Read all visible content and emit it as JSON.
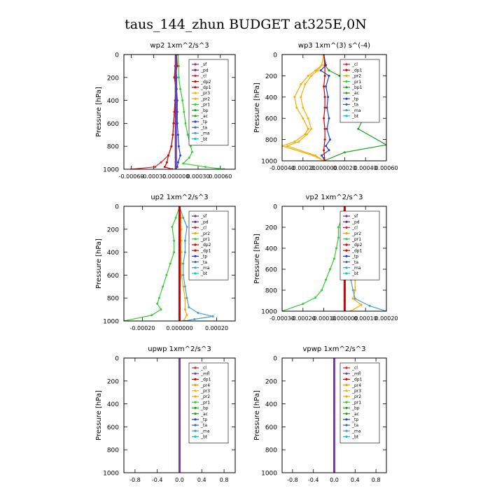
{
  "title": "taus_144_zhun  BUDGET at325E,0N",
  "colors": {
    "sf": "#6a3d9a",
    "pd": "#5b2a86",
    "mfl": "#7b3fa0",
    "cl": "#d62728",
    "dp": "#d40000",
    "pr1": "#32cd32",
    "pr2": "#ffa500",
    "pr3": "#ffb000",
    "pr4": "#e8a000",
    "bp": "#1aa31a",
    "ac": "#2ca02c",
    "tp": "#1f3fcf",
    "ta": "#4060d0",
    "ma": "#40a0d0",
    "bt": "#00ced1"
  },
  "chart_data": [
    {
      "id": "wp2",
      "type": "line",
      "title": "wp2  1xm^2/s^3",
      "ylabel": "Pressure [hPa]",
      "xlim": [
        -0.0007,
        0.0008
      ],
      "ylim": [
        1000,
        0
      ],
      "y_reversed": true,
      "xticks": [
        "-0.00060",
        "-0.00030",
        "0.000000",
        "0.00030",
        "0.00060"
      ],
      "xtick_values": [
        -0.0006,
        -0.0003,
        0,
        0.0003,
        0.0006
      ],
      "yticks": [
        "0",
        "200",
        "400",
        "600",
        "800",
        "1000"
      ],
      "ytick_values": [
        0,
        200,
        400,
        600,
        800,
        1000
      ],
      "legend": [
        "_sf",
        "_pd",
        "_cl",
        "_dp2",
        "_dp1",
        "_pr3",
        "_pr2",
        "_pr1",
        "_bp",
        "_ac",
        "_tp",
        "_ta",
        "_ma",
        "_bt"
      ],
      "legend_colors": [
        "sf",
        "pd",
        "cl",
        "dp",
        "dp",
        "pr3",
        "pr2",
        "pr1",
        "bp",
        "ac",
        "tp",
        "ta",
        "ma",
        "bt"
      ],
      "legend_placement": "top-right",
      "series": [
        {
          "c": "pr1",
          "x": [
            3e-05,
            4e-05,
            4e-05,
            6e-05,
            9e-05,
            0.00011,
            0.00013,
            0.00016,
            0.0002,
            0.00022,
            0.00018,
            0.0001,
            0.0004,
            0.00065
          ],
          "y": [
            0,
            100,
            200,
            300,
            400,
            500,
            600,
            700,
            800,
            850,
            900,
            950,
            980,
            1000
          ]
        },
        {
          "c": "cl",
          "x": [
            1e-05,
            -1e-05,
            -2e-05,
            0,
            -1e-05,
            -2e-05,
            -3e-05,
            -4e-05,
            -6e-05,
            -0.0001,
            -0.0002,
            -0.00028,
            -0.0006
          ],
          "y": [
            0,
            100,
            200,
            300,
            400,
            500,
            600,
            700,
            800,
            880,
            940,
            980,
            1000
          ]
        },
        {
          "c": "dp",
          "x": [
            1e-05,
            2e-05,
            -2e-05,
            1e-05,
            -1e-05,
            -2e-05,
            -3e-05,
            -4e-05,
            -6e-05,
            -0.0001,
            -0.00012,
            -0.00015,
            -5e-05
          ],
          "y": [
            0,
            100,
            200,
            300,
            400,
            500,
            600,
            700,
            800,
            880,
            940,
            980,
            1000
          ]
        },
        {
          "c": "tp",
          "x": [
            0,
            0,
            1e-05,
            1e-05,
            2e-05,
            2e-05,
            2e-05,
            3e-05,
            4e-05,
            6e-05,
            3e-05,
            2e-05,
            0
          ],
          "y": [
            0,
            100,
            200,
            300,
            400,
            500,
            600,
            700,
            800,
            880,
            940,
            980,
            1000
          ]
        },
        {
          "c": "sf",
          "x": [
            0,
            0,
            0,
            0,
            0,
            0,
            0,
            0,
            0,
            0,
            0
          ],
          "y": [
            0,
            100,
            200,
            300,
            400,
            500,
            600,
            700,
            800,
            900,
            1000
          ]
        }
      ]
    },
    {
      "id": "wp3",
      "type": "line",
      "title": "wp3  1xm^(3) s^(-4)",
      "ylabel": "Pressure [hPa]",
      "xlim": [
        -0.0004,
        0.0006
      ],
      "ylim": [
        1000,
        0
      ],
      "y_reversed": true,
      "xticks": [
        "-0.00040",
        "-0.00020",
        "0.000000",
        "0.00020",
        "0.00040",
        "0.00060"
      ],
      "xtick_values": [
        -0.0004,
        -0.0002,
        0,
        0.0002,
        0.0004,
        0.0006
      ],
      "yticks": [
        "0",
        "200",
        "400",
        "600",
        "800",
        "1000"
      ],
      "ytick_values": [
        0,
        200,
        400,
        600,
        800,
        1000
      ],
      "legend": [
        "_cl",
        "_dp1",
        "_pr2",
        "_pr1",
        "_bp1",
        "_ac",
        "_tp",
        "_ta",
        "_ma",
        "_bt"
      ],
      "legend_colors": [
        "cl",
        "dp",
        "pr2",
        "pr1",
        "bp",
        "ac",
        "tp",
        "ta",
        "ma",
        "bt"
      ],
      "legend_placement": "top-right",
      "series": [
        {
          "c": "bp",
          "x": [
            0,
            1e-05,
            5e-05,
            0.00015,
            0.00025,
            0.00035,
            0.00045,
            0.00048,
            0.00038,
            0.00033,
            0.0006,
            0.0002,
            0
          ],
          "y": [
            0,
            100,
            150,
            200,
            250,
            320,
            400,
            500,
            600,
            700,
            850,
            920,
            1000
          ]
        },
        {
          "c": "pr2",
          "x": [
            0,
            -2e-05,
            -8e-05,
            -0.00015,
            -0.00022,
            -0.00028,
            -0.00026,
            -0.0002,
            -0.00015,
            -0.00018,
            -0.00028,
            -0.0004,
            -0.0001,
            0
          ],
          "y": [
            0,
            100,
            150,
            200,
            280,
            400,
            500,
            600,
            700,
            750,
            820,
            860,
            950,
            1000
          ]
        },
        {
          "c": "pr3",
          "x": [
            0,
            -2e-05,
            -6e-05,
            -0.00012,
            -0.00018,
            -0.00022,
            -0.0002,
            -0.00015,
            -0.00012,
            -0.00016,
            -0.00024,
            -0.00035,
            -8e-05,
            0
          ],
          "y": [
            0,
            100,
            150,
            200,
            280,
            400,
            500,
            600,
            700,
            750,
            820,
            860,
            950,
            1000
          ]
        },
        {
          "c": "tp",
          "x": [
            0,
            2e-05,
            -3e-05,
            5e-05,
            2e-05,
            4e-05,
            3e-05,
            5e-05,
            3e-05,
            6e-05,
            2e-05,
            5e-05,
            -2e-05,
            1e-05
          ],
          "y": [
            0,
            100,
            150,
            200,
            300,
            400,
            500,
            600,
            700,
            800,
            860,
            900,
            950,
            1000
          ]
        },
        {
          "c": "dp",
          "x": [
            0,
            1e-05,
            1e-05,
            0,
            1e-05,
            1e-05,
            0,
            1e-05,
            1e-05,
            0,
            1e-05
          ],
          "y": [
            0,
            100,
            200,
            300,
            400,
            500,
            600,
            700,
            800,
            900,
            1000
          ]
        }
      ]
    },
    {
      "id": "up2",
      "type": "line",
      "title": "up2  1xm^2/s^3",
      "ylabel": "Pressure [hPa]",
      "xlim": [
        -0.0003,
        0.0003
      ],
      "ylim": [
        1000,
        0
      ],
      "y_reversed": true,
      "xticks": [
        "-0.00020",
        "0.000000",
        "0.00020"
      ],
      "xtick_values": [
        -0.0002,
        0,
        0.0002
      ],
      "yticks": [
        "0",
        "200",
        "400",
        "600",
        "800",
        "1000"
      ],
      "ytick_values": [
        0,
        200,
        400,
        600,
        800,
        1000
      ],
      "legend": [
        "_sf",
        "_pd",
        "_cl",
        "_pr2",
        "_pr1",
        "_dp2",
        "_dp1",
        "_tp",
        "_ta",
        "_ma",
        "_bt"
      ],
      "legend_colors": [
        "sf",
        "pd",
        "cl",
        "pr2",
        "pr1",
        "dp",
        "dp",
        "tp",
        "ta",
        "ma",
        "bt"
      ],
      "legend_placement": "top-right",
      "series": [
        {
          "c": "pr1",
          "x": [
            0,
            -2e-05,
            -4e-05,
            -3e-05,
            -3e-05,
            -5e-05,
            -7e-05,
            -9e-05,
            -0.00011,
            -0.00012,
            -0.0001,
            -0.00015,
            -0.0003
          ],
          "y": [
            0,
            100,
            180,
            300,
            400,
            500,
            600,
            700,
            800,
            850,
            900,
            950,
            1000
          ]
        },
        {
          "c": "ma",
          "x": [
            0,
            2e-05,
            4e-05,
            3e-05,
            3e-05,
            2e-05,
            2e-05,
            3e-05,
            4e-05,
            5e-05,
            0.0001,
            0.00018,
            8e-05,
            3e-05
          ],
          "y": [
            0,
            100,
            180,
            300,
            400,
            500,
            600,
            700,
            800,
            880,
            930,
            960,
            985,
            1000
          ]
        },
        {
          "c": "pr2",
          "x": [
            0,
            1e-05,
            1e-05,
            1e-05,
            1e-05,
            1e-05,
            1e-05,
            2e-05,
            3e-05,
            3e-05,
            4e-05,
            2e-05
          ],
          "y": [
            0,
            100,
            200,
            300,
            400,
            500,
            600,
            700,
            800,
            900,
            950,
            1000
          ]
        },
        {
          "c": "dp",
          "x": [
            0,
            0,
            0,
            0,
            0,
            0,
            0,
            0,
            0,
            0,
            0
          ],
          "y": [
            0,
            100,
            200,
            300,
            400,
            500,
            600,
            700,
            800,
            900,
            1000
          ]
        }
      ]
    },
    {
      "id": "vp2",
      "type": "line",
      "title": "vp2  1xm^2/s^3",
      "ylabel": "Pressure [hPa]",
      "xlim": [
        -0.0003,
        0.0002
      ],
      "ylim": [
        1000,
        0
      ],
      "y_reversed": true,
      "xticks": [
        "-0.00030",
        "-0.00020",
        "-0.00010",
        "0.000000",
        "0.00010",
        "0.00020"
      ],
      "xtick_values": [
        -0.0003,
        -0.0002,
        -0.0001,
        0,
        0.0001,
        0.0002
      ],
      "yticks": [
        "0",
        "200",
        "400",
        "600",
        "800",
        "1000"
      ],
      "ytick_values": [
        0,
        200,
        400,
        600,
        800,
        1000
      ],
      "legend": [
        "_sf",
        "_pd",
        "_cl",
        "_pr2",
        "_pr1",
        "_dp2",
        "_dp1",
        "_tp",
        "_ta",
        "_ma",
        "_bt"
      ],
      "legend_colors": [
        "sf",
        "pd",
        "cl",
        "pr2",
        "pr1",
        "dp",
        "dp",
        "tp",
        "ta",
        "ma",
        "bt"
      ],
      "legend_placement": "top-right",
      "series": [
        {
          "c": "pr1",
          "x": [
            0,
            -1e-05,
            -3e-05,
            -3e-05,
            -4e-05,
            -5e-05,
            -7e-05,
            -9e-05,
            -0.00011,
            -0.00014,
            -0.0002,
            -0.0003
          ],
          "y": [
            0,
            100,
            200,
            300,
            400,
            500,
            600,
            700,
            800,
            870,
            930,
            1000
          ]
        },
        {
          "c": "pr2",
          "x": [
            0,
            1e-05,
            2e-05,
            3e-05,
            4e-05,
            4e-05,
            5e-05,
            5e-05,
            5e-05,
            4e-05,
            8e-05,
            3e-05
          ],
          "y": [
            0,
            100,
            200,
            300,
            400,
            500,
            600,
            700,
            800,
            880,
            940,
            1000
          ]
        },
        {
          "c": "ma",
          "x": [
            0,
            1e-05,
            1e-05,
            2e-05,
            2e-05,
            2e-05,
            3e-05,
            3e-05,
            4e-05,
            5e-05,
            0.00012,
            0.0002
          ],
          "y": [
            0,
            100,
            200,
            300,
            400,
            500,
            600,
            700,
            800,
            880,
            950,
            1000
          ]
        },
        {
          "c": "dp",
          "x": [
            0,
            0,
            0,
            0,
            0,
            0,
            0,
            0,
            0,
            0,
            0
          ],
          "y": [
            0,
            100,
            200,
            300,
            400,
            500,
            600,
            700,
            800,
            900,
            1000
          ]
        }
      ]
    },
    {
      "id": "upwp",
      "type": "line",
      "title": "upwp  1xm^2/s^3",
      "ylabel": "Pressure [hPa]",
      "xlim": [
        -1.0,
        1.0
      ],
      "ylim": [
        1000,
        0
      ],
      "y_reversed": true,
      "xticks": [
        "-0.8",
        "-0.4",
        "0.0",
        "0.4",
        "0.8"
      ],
      "xtick_values": [
        -0.8,
        -0.4,
        0,
        0.4,
        0.8
      ],
      "yticks": [
        "0",
        "200",
        "400",
        "600",
        "800",
        "1000"
      ],
      "ytick_values": [
        0,
        200,
        400,
        600,
        800,
        1000
      ],
      "legend": [
        "_cl",
        "_mfl",
        "_dp1",
        "_pr4",
        "_pr3",
        "_pr2",
        "_pr1",
        "_bp",
        "_ac",
        "_tp",
        "_ta",
        "_ma",
        "_bt"
      ],
      "legend_colors": [
        "cl",
        "mfl",
        "dp",
        "pr4",
        "pr3",
        "pr2",
        "pr1",
        "bp",
        "ac",
        "tp",
        "ta",
        "ma",
        "bt"
      ],
      "legend_placement": "top-right",
      "series": [
        {
          "c": "mfl",
          "x": [
            0,
            0,
            0,
            0,
            0,
            0,
            0,
            0,
            0,
            0,
            0
          ],
          "y": [
            0,
            100,
            200,
            300,
            400,
            500,
            600,
            700,
            800,
            900,
            1000
          ]
        }
      ]
    },
    {
      "id": "vpwp",
      "type": "line",
      "title": "vpwp  1xm^2/s^3",
      "ylabel": "Pressure [hPa]",
      "xlim": [
        -1.0,
        1.0
      ],
      "ylim": [
        1000,
        0
      ],
      "y_reversed": true,
      "xticks": [
        "-0.8",
        "-0.4",
        "0.0",
        "0.4",
        "0.8"
      ],
      "xtick_values": [
        -0.8,
        -0.4,
        0,
        0.4,
        0.8
      ],
      "yticks": [
        "0",
        "200",
        "400",
        "600",
        "800",
        "1000"
      ],
      "ytick_values": [
        0,
        200,
        400,
        600,
        800,
        1000
      ],
      "legend": [
        "_cl",
        "_mfl",
        "_dp1",
        "_pr4",
        "_pr3",
        "_pr2",
        "_pr1",
        "_bp",
        "_ac",
        "_tp",
        "_ta",
        "_ma",
        "_bt"
      ],
      "legend_colors": [
        "cl",
        "mfl",
        "dp",
        "pr4",
        "pr3",
        "pr2",
        "pr1",
        "bp",
        "ac",
        "tp",
        "ta",
        "ma",
        "bt"
      ],
      "legend_placement": "top-right",
      "series": [
        {
          "c": "mfl",
          "x": [
            0,
            0,
            0,
            0,
            0,
            0,
            0,
            0,
            0,
            0,
            0
          ],
          "y": [
            0,
            100,
            200,
            300,
            400,
            500,
            600,
            700,
            800,
            900,
            1000
          ]
        }
      ]
    }
  ]
}
